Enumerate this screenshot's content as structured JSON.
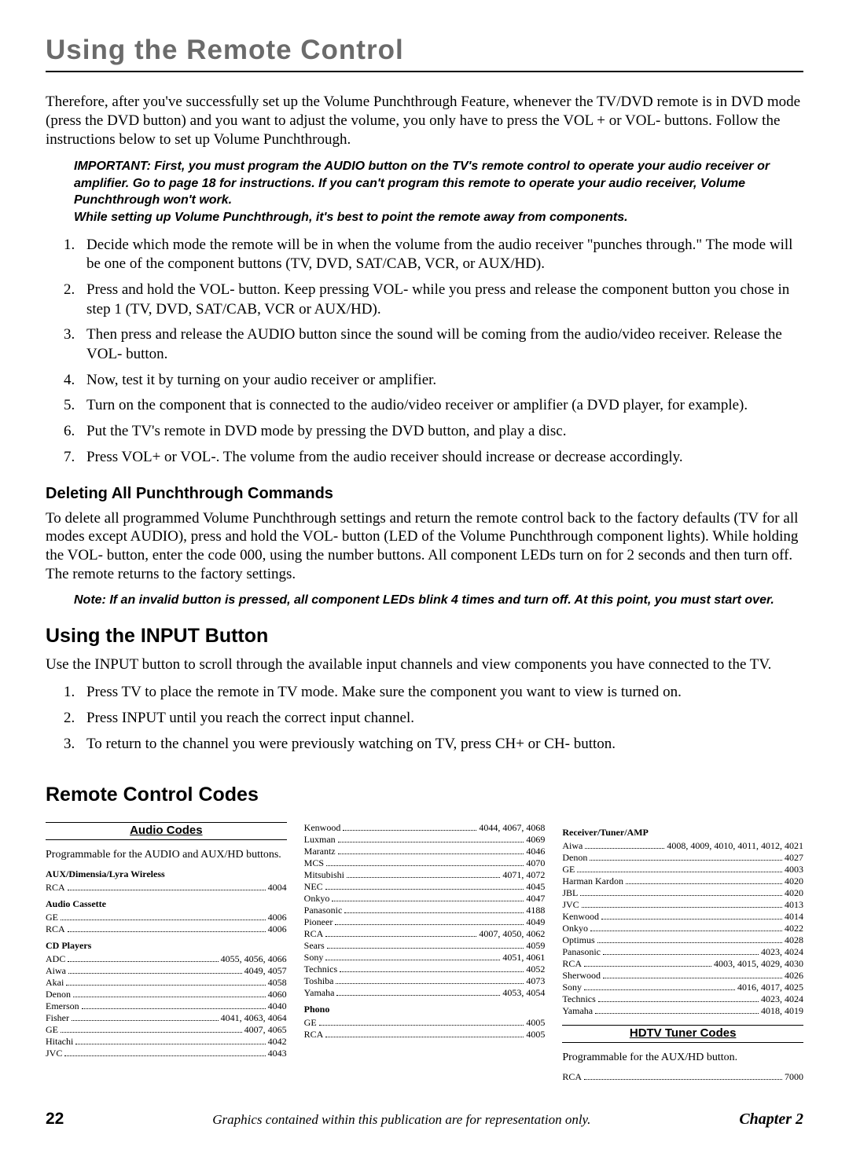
{
  "chapter_title": "Using the Remote Control",
  "intro": "Therefore, after you've successfully set up the Volume Punchthrough Feature, whenever the TV/DVD remote is in DVD mode (press the DVD button) and you want to adjust the volume, you only have to press the VOL + or VOL- buttons. Follow the instructions below to set up Volume Punchthrough.",
  "important_1": "IMPORTANT: First, you must program the AUDIO button on the TV's remote control to operate your audio receiver or amplifier.  Go to page 18 for instructions. If you can't program this remote to operate your audio receiver, Volume Punchthrough won't work.",
  "important_2": "While setting up Volume Punchthrough, it's best to point the remote away from components.",
  "steps_main": [
    "Decide which mode the remote will be in when the volume from the audio receiver \"punches through.\" The mode will be one of the component buttons (TV, DVD, SAT/CAB, VCR, or AUX/HD).",
    "Press and hold the VOL- button. Keep pressing VOL- while you press and release the component button you chose in step 1 (TV, DVD, SAT/CAB, VCR or AUX/HD).",
    "Then press and release the AUDIO button since the sound will be coming from the audio/video receiver. Release the VOL- button.",
    "Now, test it by turning on your audio receiver or amplifier.",
    "Turn on the component that is connected to the audio/video receiver or amplifier (a DVD player, for example).",
    "Put the TV's remote in DVD mode by pressing the DVD button, and play a disc.",
    "Press VOL+ or VOL-. The volume from the audio receiver should increase or decrease accordingly."
  ],
  "deleting_h": "Deleting All Punchthrough Commands",
  "deleting_p": "To delete all programmed Volume Punchthrough settings and return the remote control back to the factory defaults (TV for all modes except AUDIO), press and hold the VOL- button (LED of the Volume Punchthrough component lights). While holding the VOL- button, enter the code 000, using the number buttons. All component LEDs turn on for 2 seconds and then turn off. The remote returns to the factory settings.",
  "deleting_note": "Note: If an invalid button is pressed, all component LEDs blink 4 times and turn off. At this point, you must start over.",
  "input_h": "Using the INPUT Button",
  "input_p": "Use the INPUT button to scroll through the available input channels and view components you have connected to the TV.",
  "input_steps": [
    "Press TV to place the remote in TV mode. Make sure the component you want to view is turned on.",
    "Press INPUT until you reach the correct input channel.",
    "To return to the channel you were previously watching on TV, press CH+ or CH- button."
  ],
  "codes_h": "Remote Control Codes",
  "audio_codes_title": "Audio Codes",
  "audio_codes_sub": "Programmable for the AUDIO and AUX/HD buttons.",
  "groups_col1": [
    {
      "group": "AUX/Dimensia/Lyra Wireless",
      "rows": [
        [
          "RCA",
          "4004"
        ]
      ]
    },
    {
      "group": "Audio Cassette",
      "rows": [
        [
          "GE",
          "4006"
        ],
        [
          "RCA",
          "4006"
        ]
      ]
    },
    {
      "group": "CD Players",
      "rows": [
        [
          "ADC",
          "4055, 4056, 4066"
        ],
        [
          "Aiwa",
          "4049, 4057"
        ],
        [
          "Akai",
          "4058"
        ],
        [
          "Denon",
          "4060"
        ],
        [
          "Emerson",
          "4040"
        ],
        [
          "Fisher",
          "4041, 4063, 4064"
        ],
        [
          "GE",
          "4007, 4065"
        ],
        [
          "Hitachi",
          "4042"
        ],
        [
          "JVC",
          "4043"
        ]
      ]
    }
  ],
  "rows_col2_top": [
    [
      "Kenwood",
      "4044, 4067, 4068"
    ],
    [
      "Luxman",
      "4069"
    ],
    [
      "Marantz",
      "4046"
    ],
    [
      "MCS",
      "4070"
    ],
    [
      "Mitsubishi",
      "4071, 4072"
    ],
    [
      "NEC",
      "4045"
    ],
    [
      "Onkyo",
      "4047"
    ],
    [
      "Panasonic",
      "4188"
    ],
    [
      "Pioneer",
      "4049"
    ],
    [
      "RCA",
      "4007, 4050, 4062"
    ],
    [
      "Sears",
      "4059"
    ],
    [
      "Sony",
      "4051, 4061"
    ],
    [
      "Technics",
      "4052"
    ],
    [
      "Toshiba",
      "4073"
    ],
    [
      "Yamaha",
      "4053, 4054"
    ]
  ],
  "groups_col2_bottom": [
    {
      "group": "Phono",
      "rows": [
        [
          "GE",
          "4005"
        ],
        [
          "RCA",
          "4005"
        ]
      ]
    }
  ],
  "groups_col3": [
    {
      "group": "Receiver/Tuner/AMP",
      "rows": [
        [
          "Aiwa",
          "4008, 4009, 4010, 4011, 4012, 4021"
        ],
        [
          "Denon",
          "4027"
        ],
        [
          "GE",
          "4003"
        ],
        [
          "Harman Kardon",
          "4020"
        ],
        [
          "JBL",
          "4020"
        ],
        [
          "JVC",
          "4013"
        ],
        [
          "Kenwood",
          "4014"
        ],
        [
          "Onkyo",
          "4022"
        ],
        [
          "Optimus",
          "4028"
        ],
        [
          "Panasonic",
          "4023, 4024"
        ],
        [
          "RCA",
          "4003, 4015, 4029, 4030"
        ],
        [
          "Sherwood",
          "4026"
        ],
        [
          "Sony",
          "4016, 4017, 4025"
        ],
        [
          "Technics",
          "4023, 4024"
        ],
        [
          "Yamaha",
          "4018, 4019"
        ]
      ]
    }
  ],
  "hdtv_title": "HDTV Tuner Codes",
  "hdtv_sub": "Programmable for the AUX/HD button.",
  "hdtv_rows": [
    [
      "RCA",
      "7000"
    ]
  ],
  "footer": {
    "page": "22",
    "center": "Graphics contained within this publication are for representation only.",
    "right": "Chapter 2"
  }
}
